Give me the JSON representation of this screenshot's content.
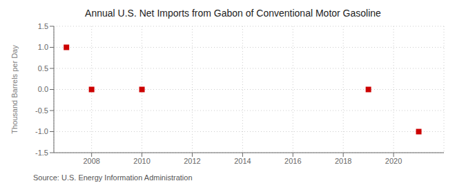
{
  "chart_data": {
    "type": "scatter",
    "title": "Annual U.S. Net Imports from Gabon of Conventional Motor Gasoline",
    "y_label": "Thousand Barrels per Day",
    "annotations": [
      "Source: U.S. Energy Information Administration"
    ],
    "x": [
      2007,
      2008,
      2010,
      2019,
      2021
    ],
    "values": [
      1.0,
      0.0,
      0.0,
      0.0,
      -1.0
    ],
    "color": "#cc0000",
    "marker": "square",
    "xlim": [
      2006.5,
      2022
    ],
    "ylim": [
      -1.5,
      1.5
    ],
    "xticks": [
      2008,
      2010,
      2012,
      2014,
      2016,
      2018,
      2020
    ],
    "yticks": [
      -1.5,
      {
        "value": -1.0,
        "label": "-1.0"
      },
      -0.5,
      {
        "value": 0.0,
        "label": "0.0"
      },
      0.5,
      {
        "value": 1.0,
        "label": "1.0"
      },
      1.5
    ],
    "grid": true
  }
}
